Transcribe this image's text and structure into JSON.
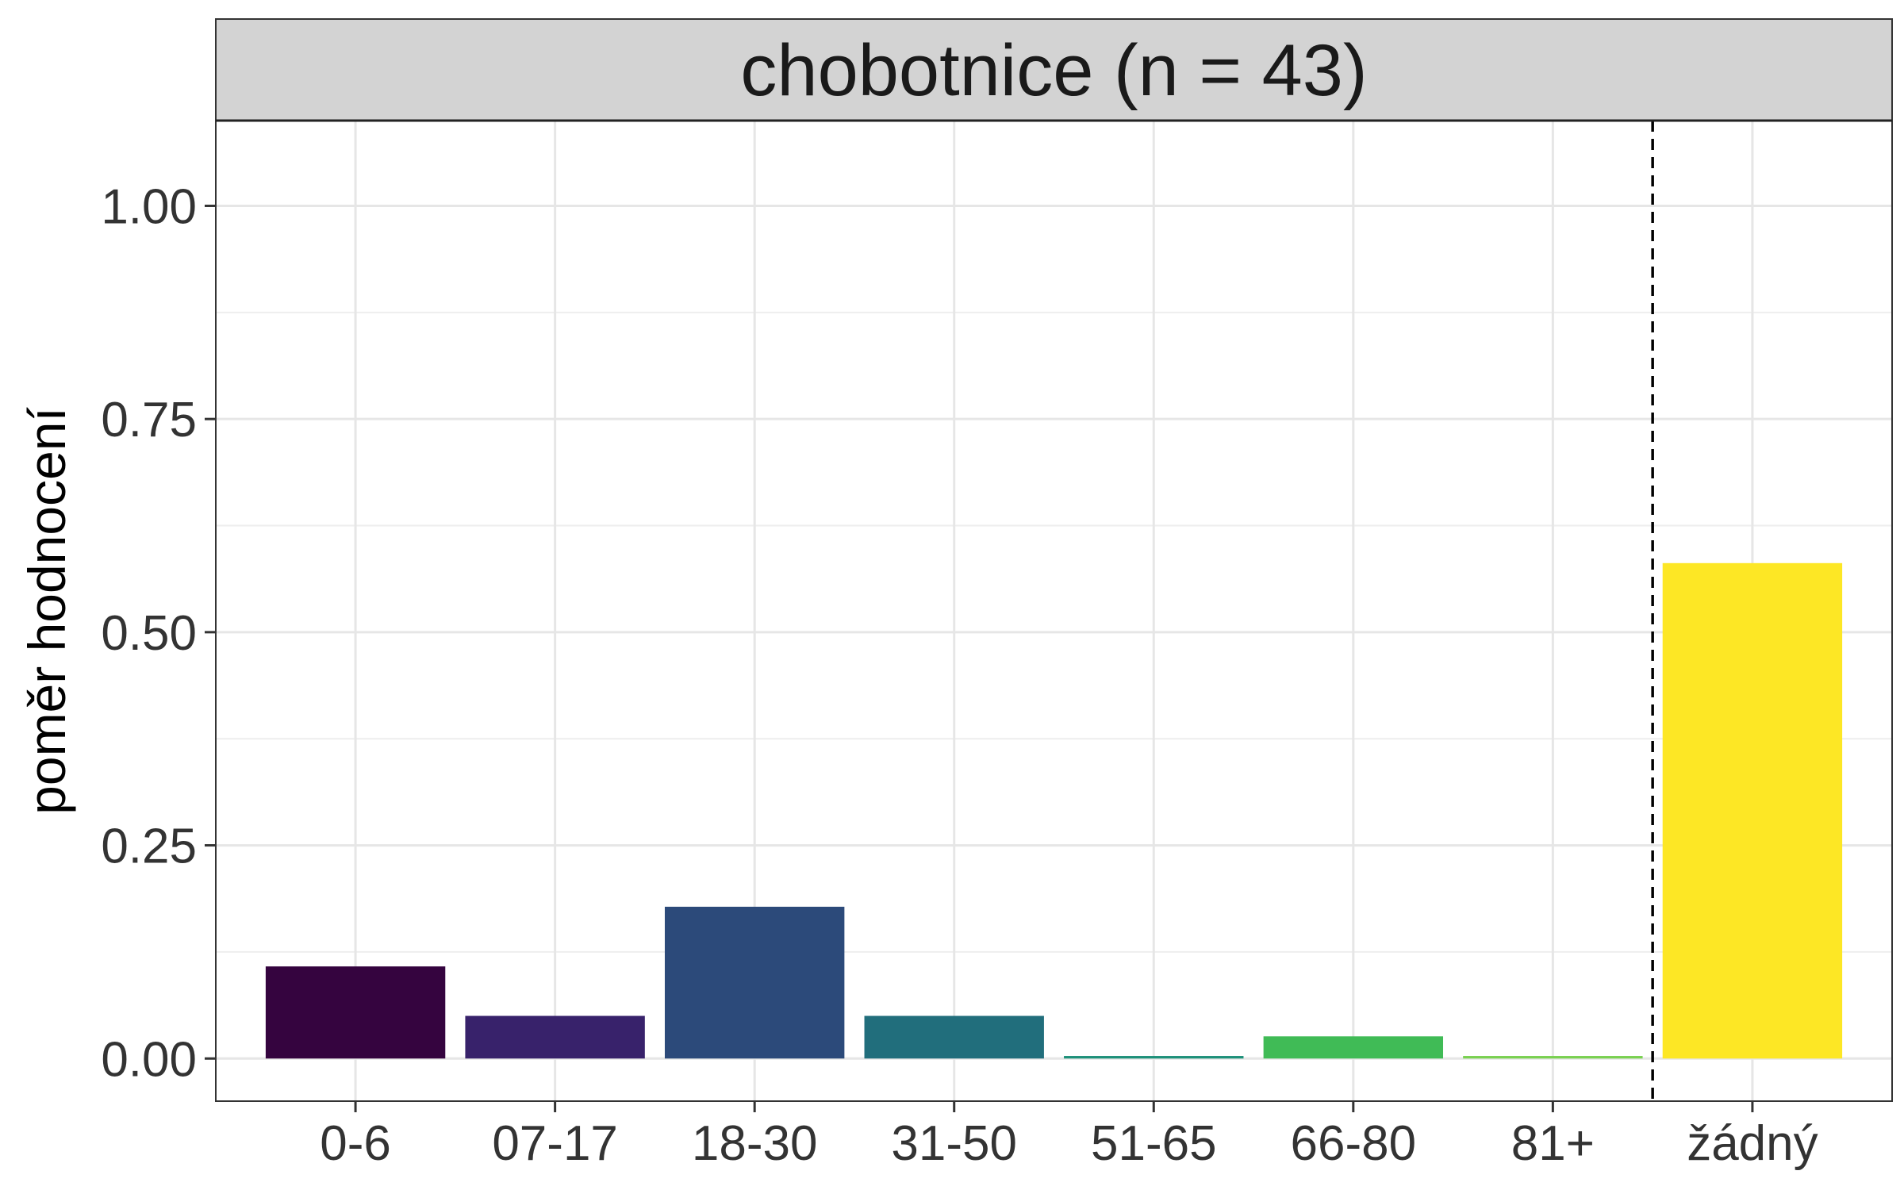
{
  "chart_data": {
    "type": "bar",
    "title": "chobotnice (n = 43)",
    "xlabel": "",
    "ylabel": "poměr hodnocení",
    "categories": [
      "0-6",
      "07-17",
      "18-30",
      "31-50",
      "51-65",
      "66-80",
      "81+",
      "žádný"
    ],
    "values": [
      0.108,
      0.05,
      0.178,
      0.05,
      0.003,
      0.026,
      0.003,
      0.581
    ],
    "colors": [
      "#35043F",
      "#38226B",
      "#2C4A7A",
      "#216E7C",
      "#1E917A",
      "#40BB56",
      "#7AD151",
      "#FDE725"
    ],
    "ylim": [
      -0.05,
      1.1
    ],
    "yticks": [
      "0.00",
      "0.25",
      "0.50",
      "0.75",
      "1.00"
    ],
    "grid": true,
    "legend": "none",
    "reference_line": {
      "style": "dashed",
      "between": [
        "81+",
        "žádný"
      ]
    }
  }
}
